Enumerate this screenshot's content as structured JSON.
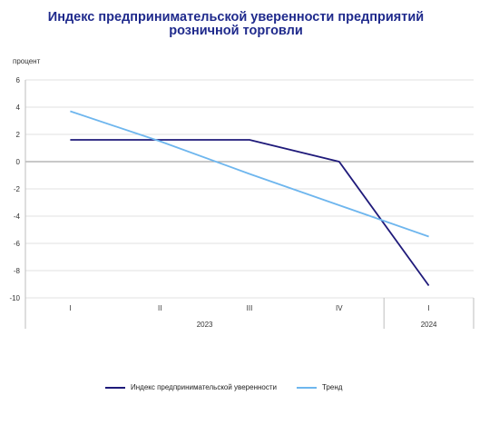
{
  "chart_data": {
    "type": "line",
    "title_lines": [
      "Индекс предпринимательской уверенности предприятий",
      "розничной торговли"
    ],
    "ylabel": "процент",
    "ylim": [
      -10,
      6
    ],
    "yticks": [
      6,
      4,
      2,
      0,
      -2,
      -4,
      -6,
      -8,
      -10
    ],
    "ytick_labels": [
      "6",
      "4",
      "2",
      "0",
      "-2",
      "-4",
      "-6",
      "-8",
      "-10"
    ],
    "categories": [
      "I",
      "II",
      "III",
      "IV",
      "I"
    ],
    "year_groups": [
      {
        "label": "2023",
        "span": 4
      },
      {
        "label": "2024",
        "span": 1
      }
    ],
    "grid": true,
    "legend_placement": "bottom",
    "series": [
      {
        "name": "Индекс предпринимательской уверенности",
        "values": [
          1.6,
          1.6,
          1.6,
          0.0,
          -9.1
        ],
        "color": "#1f1a7a"
      },
      {
        "name": "Тренд",
        "values": [
          3.7,
          1.5,
          -0.9,
          -3.2,
          -5.5
        ],
        "color": "#6eb6ee"
      }
    ]
  }
}
